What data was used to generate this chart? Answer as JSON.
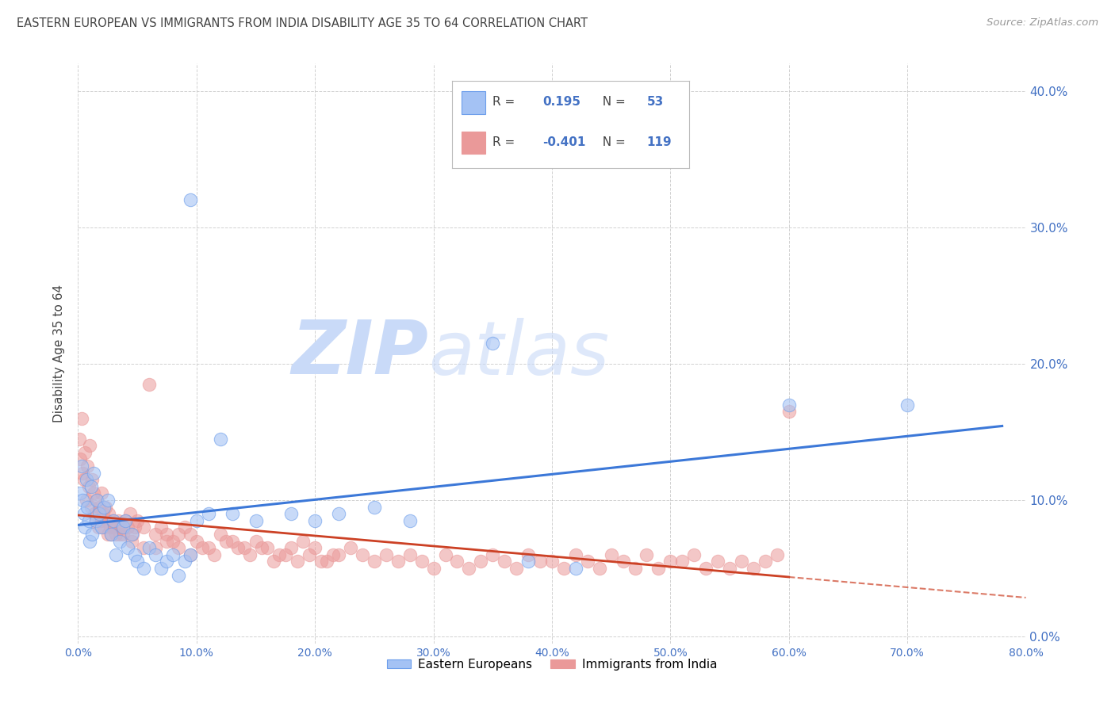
{
  "title": "EASTERN EUROPEAN VS IMMIGRANTS FROM INDIA DISABILITY AGE 35 TO 64 CORRELATION CHART",
  "source": "Source: ZipAtlas.com",
  "ylabel": "Disability Age 35 to 64",
  "xlim": [
    0.0,
    0.8
  ],
  "ylim": [
    -0.005,
    0.42
  ],
  "xticks": [
    0.0,
    0.1,
    0.2,
    0.3,
    0.4,
    0.5,
    0.6,
    0.7,
    0.8
  ],
  "xtick_labels": [
    "0.0%",
    "10.0%",
    "20.0%",
    "30.0%",
    "40.0%",
    "50.0%",
    "60.0%",
    "70.0%",
    "80.0%"
  ],
  "yticks": [
    0.0,
    0.1,
    0.2,
    0.3,
    0.4
  ],
  "ytick_labels": [
    "0.0%",
    "10.0%",
    "20.0%",
    "30.0%",
    "40.0%"
  ],
  "blue_fill": "#a4c2f4",
  "blue_edge": "#6d9eeb",
  "pink_fill": "#ea9999",
  "pink_edge": "#e06666",
  "blue_line_color": "#3c78d8",
  "pink_line_color": "#cc4125",
  "legend_blue_label": "Eastern Europeans",
  "legend_pink_label": "Immigrants from India",
  "R_blue": "0.195",
  "N_blue": "53",
  "R_pink": "-0.401",
  "N_pink": "119",
  "background_color": "#ffffff",
  "grid_color": "#cccccc",
  "title_color": "#434343",
  "ylabel_color": "#434343",
  "tick_label_color": "#4472c4",
  "watermark_zip": "ZIP",
  "watermark_atlas": "atlas",
  "watermark_color": "#c9daf8"
}
